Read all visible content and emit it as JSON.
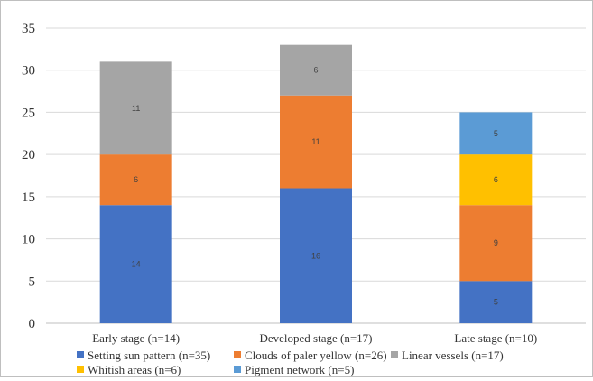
{
  "chart_data": {
    "type": "bar",
    "stacked": true,
    "categories": [
      "Early stage (n=14)",
      "Developed stage (n=17)",
      "Late stage (n=10)"
    ],
    "series": [
      {
        "name": "Setting sun pattern  (n=35)",
        "color": "#4472c4",
        "values": [
          14,
          16,
          5
        ]
      },
      {
        "name": "Clouds of paler yellow (n=26)",
        "color": "#ed7d31",
        "values": [
          6,
          11,
          9
        ]
      },
      {
        "name": "Linear vessels (n=17)",
        "color": "#a5a5a5",
        "values": [
          11,
          6,
          0
        ]
      },
      {
        "name": "Whitish  areas (n=6)",
        "color": "#ffc000",
        "values": [
          0,
          0,
          6
        ]
      },
      {
        "name": "Pigment network (n=5)",
        "color": "#5b9bd5",
        "values": [
          0,
          0,
          5
        ]
      }
    ],
    "ylim": [
      0,
      35
    ],
    "yticks": [
      0,
      5,
      10,
      15,
      20,
      25,
      30,
      35
    ],
    "grid": true,
    "legend_position": "bottom"
  }
}
